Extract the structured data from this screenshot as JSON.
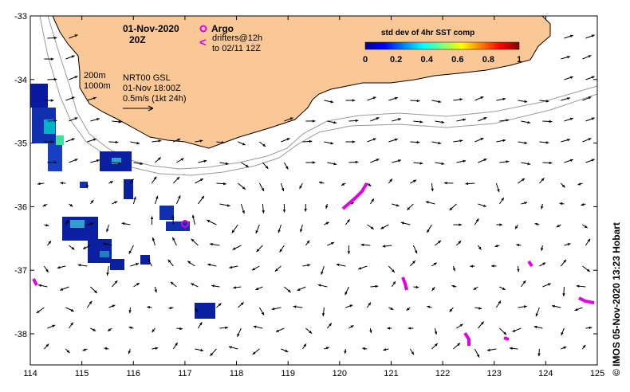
{
  "map": {
    "date_title": "01-Nov-2020",
    "time_title": "20Z",
    "contour_200": "200m",
    "contour_1000": "1000m",
    "product": "NRT00 GSL",
    "product_time": "01-Nov 18:00Z",
    "scale_label": "0.5m/s (1kt 24h)",
    "argo_label": "Argo",
    "drifters_label": "drifters@12h",
    "drifters_to": "to 02/11 12Z",
    "drifter_symbol": "<",
    "x_ticks": [
      "114",
      "115",
      "116",
      "117",
      "118",
      "119",
      "120",
      "121",
      "122",
      "123",
      "124",
      "125"
    ],
    "y_ticks": [
      "-33",
      "-34",
      "-35",
      "-36",
      "-37",
      "-38"
    ],
    "colorbar": {
      "title": "std dev of 4hr SST comp",
      "ticks": [
        "0",
        "0.2",
        "0.4",
        "0.6",
        "0.8",
        "1"
      ]
    },
    "credit": "© IMOS 05-Nov-2020 13:23 Hobart",
    "colors": {
      "land": "#fac896",
      "drifters": "#e100e1",
      "isobath": "#9a9a9a",
      "sst_low": "#00008f",
      "sst_mid": "#00c8c8"
    }
  }
}
